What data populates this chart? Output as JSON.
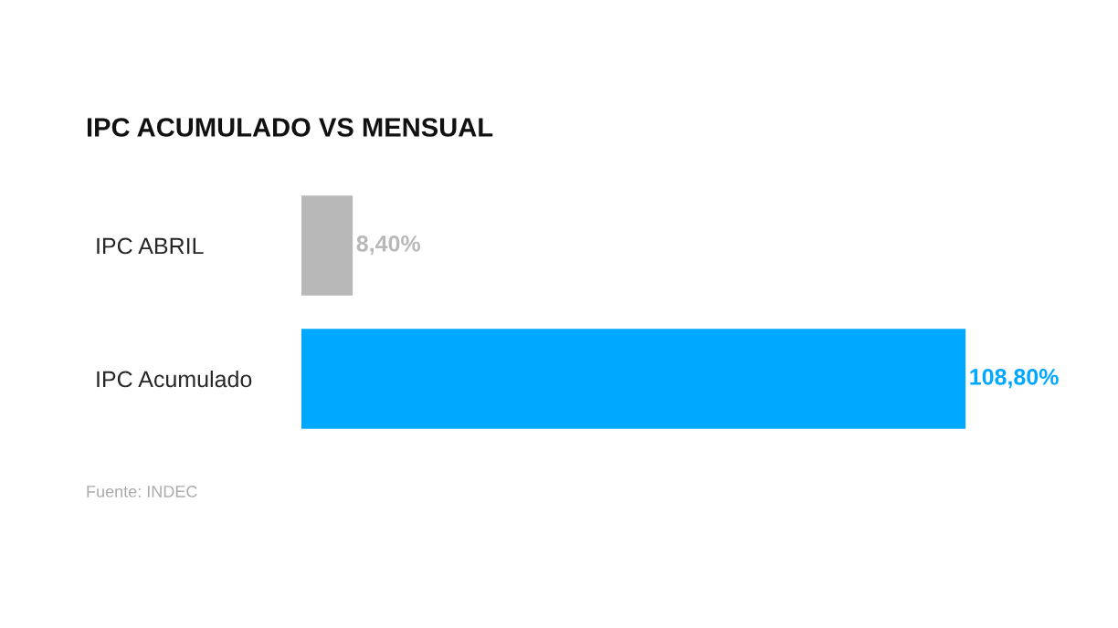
{
  "chart_data": {
    "type": "bar",
    "orientation": "horizontal",
    "title": "IPC ACUMULADO VS MENSUAL",
    "categories": [
      "IPC ABRIL",
      "IPC Acumulado"
    ],
    "values": [
      8.4,
      108.8
    ],
    "colors": [
      "#b8b8b8",
      "#00a8ff"
    ],
    "value_labels": [
      "8,40%",
      "108,80%"
    ],
    "annotations": [
      "Fuente: INDEC"
    ]
  }
}
